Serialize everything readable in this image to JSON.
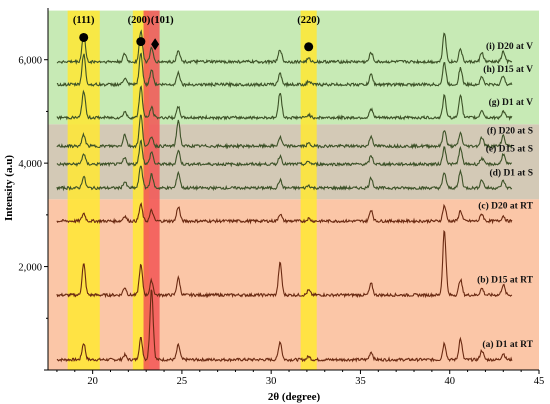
{
  "chart_data": {
    "type": "line",
    "title": "",
    "xlabel": "2θ (degree)",
    "ylabel": "Intensity (a.u)",
    "xlim": [
      17.5,
      45
    ],
    "ylim": [
      0,
      7000
    ],
    "x_ticks": [
      20,
      25,
      30,
      35,
      40,
      45
    ],
    "y_ticks": [
      2000,
      4000,
      6000
    ],
    "y_tick_labels": [
      "2,000",
      "4,000",
      "6,000"
    ],
    "grid": false,
    "legend": "inline labels at right end of each curve",
    "bands": [
      {
        "name": "V",
        "y_from": 4750,
        "y_to": 6950,
        "color": "#c7eab5"
      },
      {
        "name": "S",
        "y_from": 3300,
        "y_to": 4750,
        "color": "#d3c9b6"
      },
      {
        "name": "RT",
        "y_from": 0,
        "y_to": 3300,
        "color": "#fbc6a7"
      }
    ],
    "peak_highlights": [
      {
        "x": 19.5,
        "width": 1.8,
        "color": "#ffe833",
        "label": "(111)"
      },
      {
        "x": 22.7,
        "width": 0.9,
        "color": "#ffe833",
        "label": "(200)"
      },
      {
        "x": 23.3,
        "width": 0.9,
        "color": "#f25555",
        "label": "(101)"
      },
      {
        "x": 32.1,
        "width": 0.9,
        "color": "#ffe833",
        "label": "(220)"
      }
    ],
    "markers": [
      {
        "x": 19.5,
        "y": 6430,
        "shape": "circle"
      },
      {
        "x": 22.7,
        "y": 6350,
        "shape": "circle"
      },
      {
        "x": 23.5,
        "y": 6300,
        "shape": "diamond"
      },
      {
        "x": 32.1,
        "y": 6250,
        "shape": "circle"
      }
    ],
    "peak_positions": [
      19.5,
      21.8,
      22.7,
      23.3,
      24.8,
      30.5,
      32.1,
      35.6,
      39.7,
      40.6,
      41.8,
      43.0
    ],
    "series": [
      {
        "name": "(a) D1 at RT",
        "baseline": 200,
        "color": "#6b2a12",
        "peak_heights": [
          320,
          90,
          420,
          1380,
          280,
          350,
          60,
          150,
          320,
          400,
          180,
          120
        ]
      },
      {
        "name": "(b) D15 at RT",
        "baseline": 1450,
        "color": "#6b2a12",
        "peak_heights": [
          600,
          150,
          580,
          280,
          330,
          620,
          90,
          220,
          1250,
          300,
          130,
          200
        ]
      },
      {
        "name": "(c) D20 at RT",
        "baseline": 2880,
        "color": "#6b2a12",
        "peak_heights": [
          150,
          100,
          320,
          210,
          280,
          140,
          50,
          220,
          300,
          200,
          140,
          100
        ]
      },
      {
        "name": "(d) D1 at S",
        "baseline": 3520,
        "color": "#3d5228",
        "peak_heights": [
          220,
          120,
          440,
          260,
          300,
          150,
          50,
          200,
          300,
          320,
          160,
          140
        ]
      },
      {
        "name": "(e) D15 at S",
        "baseline": 3980,
        "color": "#3d5228",
        "peak_heights": [
          200,
          120,
          450,
          240,
          260,
          160,
          50,
          160,
          330,
          300,
          120,
          200
        ]
      },
      {
        "name": "(f) D20 at S",
        "baseline": 4330,
        "color": "#3d5228",
        "peak_heights": [
          220,
          230,
          600,
          190,
          500,
          170,
          50,
          190,
          320,
          250,
          170,
          210
        ]
      },
      {
        "name": "(g) D1 at V",
        "baseline": 4880,
        "color": "#3d5228",
        "peak_heights": [
          520,
          120,
          600,
          200,
          200,
          500,
          60,
          170,
          420,
          450,
          150,
          120
        ]
      },
      {
        "name": "(h) D15 at V",
        "baseline": 5520,
        "color": "#3d5228",
        "peak_heights": [
          600,
          120,
          600,
          300,
          240,
          220,
          60,
          200,
          420,
          320,
          150,
          180
        ]
      },
      {
        "name": "(i) D20 at V",
        "baseline": 5960,
        "color": "#3d5228",
        "peak_heights": [
          550,
          150,
          600,
          260,
          230,
          240,
          60,
          180,
          580,
          250,
          180,
          200
        ]
      }
    ]
  }
}
